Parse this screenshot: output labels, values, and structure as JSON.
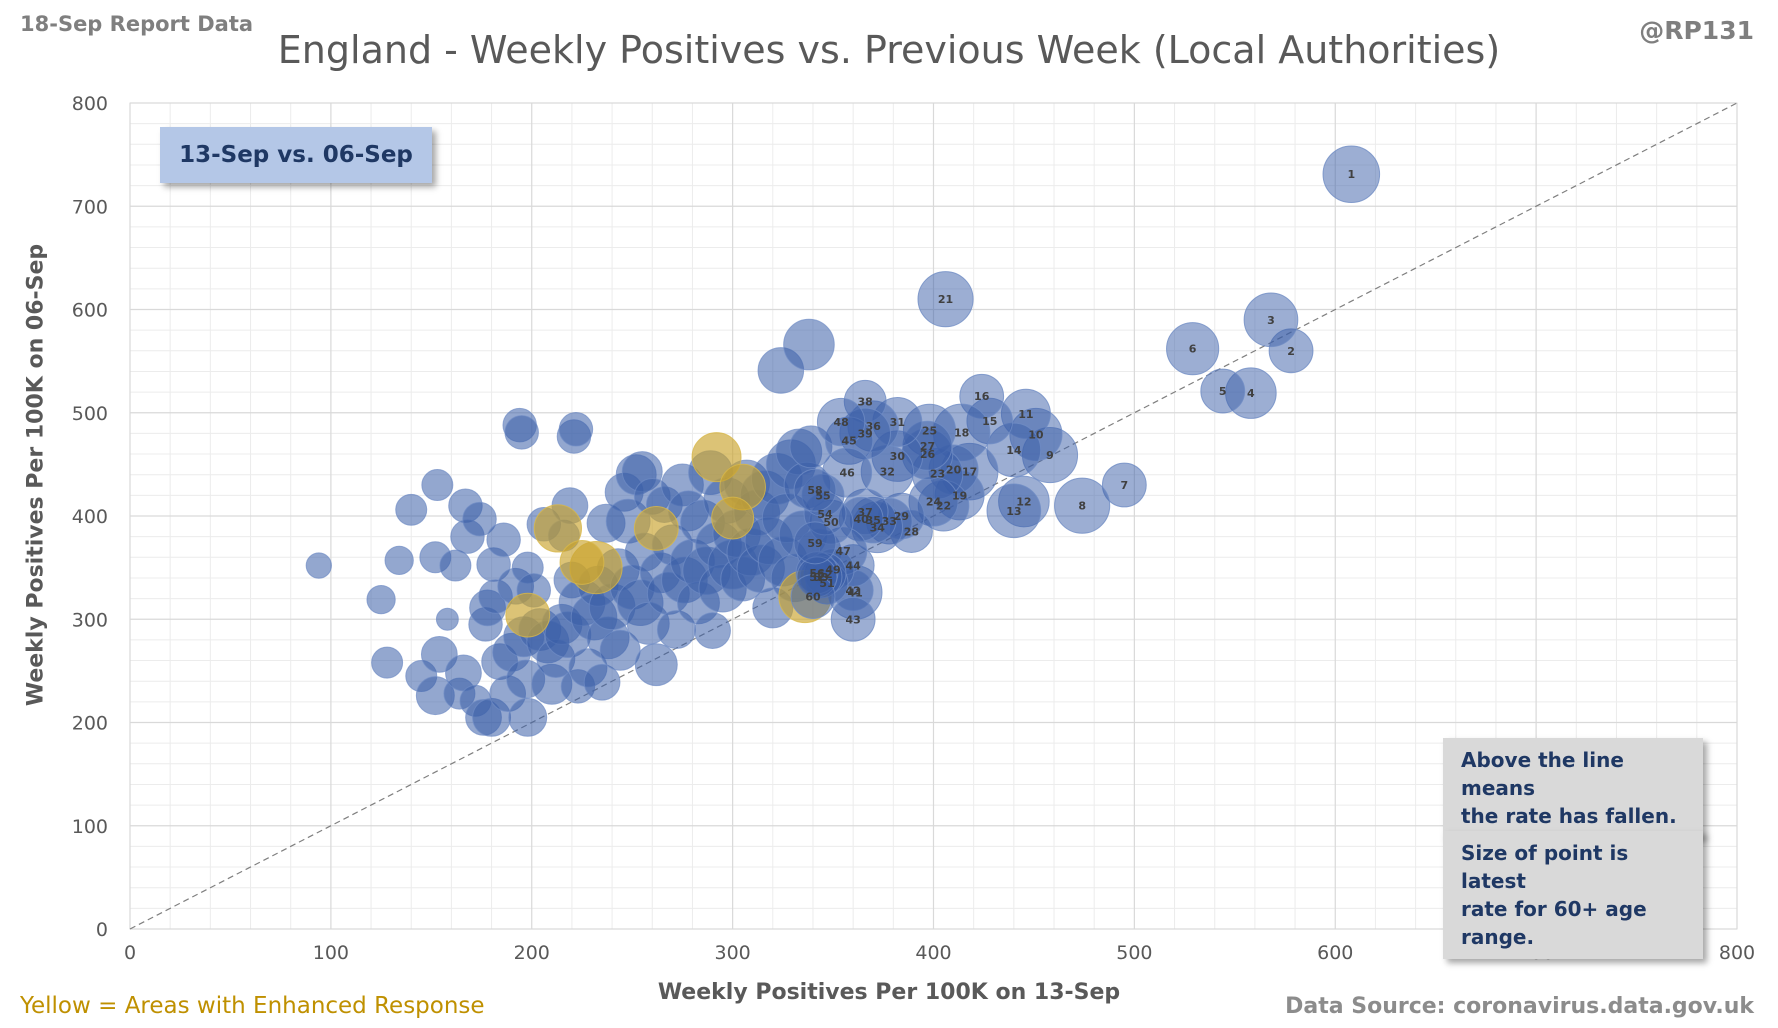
{
  "header": {
    "report_date": "18-Sep Report Data",
    "handle": "@RP131"
  },
  "footer": {
    "enhanced_note": "Yellow = Areas with Enhanced  Response",
    "source": "Data Source: coronavirus.data.gov.uk"
  },
  "annotations": {
    "period": "13-Sep vs. 06-Sep",
    "note_line": "Above the line means\nthe rate has fallen.",
    "note_size": "Size of point is latest\nrate for 60+ age range."
  },
  "colors": {
    "blue": "#3a5ea8",
    "yellow": "#c9a32c",
    "label": "#404040",
    "grid": "#d9d9d9"
  },
  "chart_data": {
    "type": "scatter",
    "title": "England - Weekly Positives vs. Previous Week (Local Authorities)",
    "xlabel": "Weekly Positives Per 100K on 13-Sep",
    "ylabel": "Weekly Positives Per 100K on 06-Sep",
    "xlim": [
      0,
      800
    ],
    "ylim": [
      0,
      800
    ],
    "xticks": [
      0,
      100,
      200,
      300,
      400,
      500,
      600,
      700,
      800
    ],
    "yticks": [
      0,
      100,
      200,
      300,
      400,
      500,
      600,
      700,
      800
    ],
    "grid": true,
    "reference_line": "y = x",
    "point_size_meaning": "latest rate for 60+ age range",
    "labeled_points": [
      {
        "label": "1",
        "x": 608,
        "y": 731,
        "size": 200
      },
      {
        "label": "2",
        "x": 578,
        "y": 560,
        "size": 120
      },
      {
        "label": "3",
        "x": 568,
        "y": 590,
        "size": 180
      },
      {
        "label": "4",
        "x": 558,
        "y": 519,
        "size": 160
      },
      {
        "label": "5",
        "x": 544,
        "y": 521,
        "size": 120
      },
      {
        "label": "6",
        "x": 529,
        "y": 562,
        "size": 170
      },
      {
        "label": "7",
        "x": 495,
        "y": 430,
        "size": 120
      },
      {
        "label": "8",
        "x": 474,
        "y": 410,
        "size": 190
      },
      {
        "label": "9",
        "x": 458,
        "y": 459,
        "size": 190
      },
      {
        "label": "10",
        "x": 451,
        "y": 479,
        "size": 170
      },
      {
        "label": "11",
        "x": 446,
        "y": 499,
        "size": 150
      },
      {
        "label": "12",
        "x": 445,
        "y": 414,
        "size": 160
      },
      {
        "label": "13",
        "x": 440,
        "y": 405,
        "size": 180
      },
      {
        "label": "14",
        "x": 440,
        "y": 464,
        "size": 180
      },
      {
        "label": "15",
        "x": 428,
        "y": 492,
        "size": 130
      },
      {
        "label": "16",
        "x": 424,
        "y": 516,
        "size": 120
      },
      {
        "label": "17",
        "x": 418,
        "y": 443,
        "size": 200
      },
      {
        "label": "18",
        "x": 414,
        "y": 481,
        "size": 200
      },
      {
        "label": "19",
        "x": 413,
        "y": 420,
        "size": 150
      },
      {
        "label": "20",
        "x": 410,
        "y": 445,
        "size": 150
      },
      {
        "label": "21",
        "x": 406,
        "y": 610,
        "size": 190
      },
      {
        "label": "22",
        "x": 405,
        "y": 410,
        "size": 160
      },
      {
        "label": "23",
        "x": 402,
        "y": 441,
        "size": 160
      },
      {
        "label": "24",
        "x": 400,
        "y": 414,
        "size": 150
      },
      {
        "label": "25",
        "x": 398,
        "y": 483,
        "size": 170
      },
      {
        "label": "26",
        "x": 397,
        "y": 460,
        "size": 160
      },
      {
        "label": "27",
        "x": 397,
        "y": 468,
        "size": 150
      },
      {
        "label": "28",
        "x": 389,
        "y": 385,
        "size": 110
      },
      {
        "label": "29",
        "x": 384,
        "y": 400,
        "size": 130
      },
      {
        "label": "30",
        "x": 382,
        "y": 458,
        "size": 160
      },
      {
        "label": "31",
        "x": 382,
        "y": 491,
        "size": 150
      },
      {
        "label": "32",
        "x": 377,
        "y": 443,
        "size": 170
      },
      {
        "label": "33",
        "x": 378,
        "y": 395,
        "size": 130
      },
      {
        "label": "34",
        "x": 372,
        "y": 389,
        "size": 160
      },
      {
        "label": "35",
        "x": 370,
        "y": 396,
        "size": 130
      },
      {
        "label": "36",
        "x": 370,
        "y": 487,
        "size": 160
      },
      {
        "label": "37",
        "x": 366,
        "y": 404,
        "size": 130
      },
      {
        "label": "38",
        "x": 366,
        "y": 511,
        "size": 110
      },
      {
        "label": "39",
        "x": 366,
        "y": 480,
        "size": 160
      },
      {
        "label": "40",
        "x": 364,
        "y": 397,
        "size": 120
      },
      {
        "label": "41",
        "x": 361,
        "y": 326,
        "size": 180
      },
      {
        "label": "42",
        "x": 360,
        "y": 328,
        "size": 100
      },
      {
        "label": "43",
        "x": 360,
        "y": 300,
        "size": 120
      },
      {
        "label": "44",
        "x": 360,
        "y": 352,
        "size": 110
      },
      {
        "label": "45",
        "x": 358,
        "y": 473,
        "size": 140
      },
      {
        "label": "46",
        "x": 357,
        "y": 442,
        "size": 150
      },
      {
        "label": "47",
        "x": 355,
        "y": 366,
        "size": 140
      },
      {
        "label": "48",
        "x": 354,
        "y": 491,
        "size": 140
      },
      {
        "label": "49",
        "x": 350,
        "y": 348,
        "size": 110
      },
      {
        "label": "50",
        "x": 349,
        "y": 394,
        "size": 120
      },
      {
        "label": "51",
        "x": 347,
        "y": 335,
        "size": 110
      },
      {
        "label": "52",
        "x": 346,
        "y": 344,
        "size": 110
      },
      {
        "label": "53",
        "x": 344,
        "y": 341,
        "size": 110
      },
      {
        "label": "54",
        "x": 346,
        "y": 402,
        "size": 110
      },
      {
        "label": "55",
        "x": 345,
        "y": 420,
        "size": 110
      },
      {
        "label": "56",
        "x": 342,
        "y": 345,
        "size": 110
      },
      {
        "label": "57",
        "x": 342,
        "y": 341,
        "size": 100
      },
      {
        "label": "58",
        "x": 341,
        "y": 425,
        "size": 110
      },
      {
        "label": "59",
        "x": 341,
        "y": 374,
        "size": 110
      },
      {
        "label": "60",
        "x": 340,
        "y": 322,
        "size": 120
      }
    ],
    "enhanced_response_points": [
      {
        "x": 292,
        "y": 457,
        "size": 150
      },
      {
        "x": 305,
        "y": 428,
        "size": 130
      },
      {
        "x": 300,
        "y": 398,
        "size": 110
      },
      {
        "x": 262,
        "y": 388,
        "size": 120
      },
      {
        "x": 213,
        "y": 388,
        "size": 140
      },
      {
        "x": 232,
        "y": 350,
        "size": 170
      },
      {
        "x": 225,
        "y": 355,
        "size": 120
      },
      {
        "x": 198,
        "y": 304,
        "size": 120
      },
      {
        "x": 336,
        "y": 322,
        "size": 170
      }
    ],
    "other_points": [
      {
        "x": 94,
        "y": 352,
        "size": 40
      },
      {
        "x": 125,
        "y": 319,
        "size": 50
      },
      {
        "x": 128,
        "y": 258,
        "size": 60
      },
      {
        "x": 134,
        "y": 357,
        "size": 50
      },
      {
        "x": 140,
        "y": 406,
        "size": 60
      },
      {
        "x": 145,
        "y": 245,
        "size": 60
      },
      {
        "x": 152,
        "y": 226,
        "size": 90
      },
      {
        "x": 153,
        "y": 430,
        "size": 60
      },
      {
        "x": 152,
        "y": 360,
        "size": 60
      },
      {
        "x": 154,
        "y": 266,
        "size": 80
      },
      {
        "x": 158,
        "y": 300,
        "size": 30
      },
      {
        "x": 162,
        "y": 352,
        "size": 60
      },
      {
        "x": 164,
        "y": 228,
        "size": 60
      },
      {
        "x": 166,
        "y": 248,
        "size": 80
      },
      {
        "x": 167,
        "y": 410,
        "size": 70
      },
      {
        "x": 168,
        "y": 380,
        "size": 70
      },
      {
        "x": 172,
        "y": 221,
        "size": 60
      },
      {
        "x": 174,
        "y": 397,
        "size": 70
      },
      {
        "x": 176,
        "y": 205,
        "size": 80
      },
      {
        "x": 177,
        "y": 295,
        "size": 70
      },
      {
        "x": 178,
        "y": 311,
        "size": 80
      },
      {
        "x": 180,
        "y": 205,
        "size": 90
      },
      {
        "x": 181,
        "y": 353,
        "size": 70
      },
      {
        "x": 182,
        "y": 322,
        "size": 70
      },
      {
        "x": 184,
        "y": 259,
        "size": 80
      },
      {
        "x": 186,
        "y": 377,
        "size": 70
      },
      {
        "x": 188,
        "y": 228,
        "size": 80
      },
      {
        "x": 190,
        "y": 268,
        "size": 90
      },
      {
        "x": 192,
        "y": 332,
        "size": 80
      },
      {
        "x": 194,
        "y": 488,
        "size": 70
      },
      {
        "x": 195,
        "y": 481,
        "size": 70
      },
      {
        "x": 196,
        "y": 283,
        "size": 100
      },
      {
        "x": 197,
        "y": 242,
        "size": 90
      },
      {
        "x": 198,
        "y": 205,
        "size": 90
      },
      {
        "x": 198,
        "y": 350,
        "size": 60
      },
      {
        "x": 201,
        "y": 328,
        "size": 70
      },
      {
        "x": 204,
        "y": 290,
        "size": 110
      },
      {
        "x": 206,
        "y": 392,
        "size": 70
      },
      {
        "x": 208,
        "y": 278,
        "size": 110
      },
      {
        "x": 210,
        "y": 237,
        "size": 100
      },
      {
        "x": 212,
        "y": 262,
        "size": 90
      },
      {
        "x": 215,
        "y": 295,
        "size": 100
      },
      {
        "x": 216,
        "y": 381,
        "size": 60
      },
      {
        "x": 218,
        "y": 285,
        "size": 130
      },
      {
        "x": 219,
        "y": 410,
        "size": 80
      },
      {
        "x": 220,
        "y": 338,
        "size": 80
      },
      {
        "x": 221,
        "y": 477,
        "size": 70
      },
      {
        "x": 222,
        "y": 484,
        "size": 70
      },
      {
        "x": 223,
        "y": 235,
        "size": 70
      },
      {
        "x": 225,
        "y": 316,
        "size": 130
      },
      {
        "x": 228,
        "y": 253,
        "size": 90
      },
      {
        "x": 231,
        "y": 302,
        "size": 130
      },
      {
        "x": 233,
        "y": 332,
        "size": 100
      },
      {
        "x": 235,
        "y": 239,
        "size": 80
      },
      {
        "x": 237,
        "y": 393,
        "size": 90
      },
      {
        "x": 238,
        "y": 282,
        "size": 110
      },
      {
        "x": 240,
        "y": 312,
        "size": 130
      },
      {
        "x": 243,
        "y": 348,
        "size": 110
      },
      {
        "x": 244,
        "y": 270,
        "size": 100
      },
      {
        "x": 246,
        "y": 423,
        "size": 90
      },
      {
        "x": 248,
        "y": 395,
        "size": 120
      },
      {
        "x": 250,
        "y": 331,
        "size": 120
      },
      {
        "x": 252,
        "y": 440,
        "size": 100
      },
      {
        "x": 254,
        "y": 316,
        "size": 130
      },
      {
        "x": 255,
        "y": 443,
        "size": 100
      },
      {
        "x": 256,
        "y": 365,
        "size": 90
      },
      {
        "x": 258,
        "y": 296,
        "size": 110
      },
      {
        "x": 260,
        "y": 419,
        "size": 80
      },
      {
        "x": 262,
        "y": 256,
        "size": 110
      },
      {
        "x": 264,
        "y": 345,
        "size": 100
      },
      {
        "x": 266,
        "y": 411,
        "size": 80
      },
      {
        "x": 268,
        "y": 325,
        "size": 110
      },
      {
        "x": 270,
        "y": 372,
        "size": 100
      },
      {
        "x": 272,
        "y": 290,
        "size": 90
      },
      {
        "x": 275,
        "y": 430,
        "size": 110
      },
      {
        "x": 276,
        "y": 338,
        "size": 130
      },
      {
        "x": 278,
        "y": 405,
        "size": 100
      },
      {
        "x": 280,
        "y": 356,
        "size": 120
      },
      {
        "x": 283,
        "y": 316,
        "size": 110
      },
      {
        "x": 285,
        "y": 394,
        "size": 120
      },
      {
        "x": 287,
        "y": 347,
        "size": 140
      },
      {
        "x": 289,
        "y": 442,
        "size": 120
      },
      {
        "x": 290,
        "y": 289,
        "size": 80
      },
      {
        "x": 293,
        "y": 372,
        "size": 130
      },
      {
        "x": 295,
        "y": 330,
        "size": 140
      },
      {
        "x": 297,
        "y": 415,
        "size": 130
      },
      {
        "x": 300,
        "y": 353,
        "size": 150
      },
      {
        "x": 302,
        "y": 383,
        "size": 140
      },
      {
        "x": 305,
        "y": 339,
        "size": 120
      },
      {
        "x": 307,
        "y": 432,
        "size": 130
      },
      {
        "x": 309,
        "y": 365,
        "size": 140
      },
      {
        "x": 312,
        "y": 403,
        "size": 130
      },
      {
        "x": 314,
        "y": 349,
        "size": 140
      },
      {
        "x": 316,
        "y": 420,
        "size": 150
      },
      {
        "x": 318,
        "y": 376,
        "size": 140
      },
      {
        "x": 320,
        "y": 311,
        "size": 100
      },
      {
        "x": 322,
        "y": 436,
        "size": 160
      },
      {
        "x": 324,
        "y": 541,
        "size": 130
      },
      {
        "x": 325,
        "y": 356,
        "size": 150
      },
      {
        "x": 327,
        "y": 398,
        "size": 150
      },
      {
        "x": 329,
        "y": 450,
        "size": 150
      },
      {
        "x": 331,
        "y": 340,
        "size": 140
      },
      {
        "x": 333,
        "y": 462,
        "size": 130
      },
      {
        "x": 335,
        "y": 382,
        "size": 140
      },
      {
        "x": 337,
        "y": 430,
        "size": 130
      },
      {
        "x": 338,
        "y": 566,
        "size": 160
      },
      {
        "x": 339,
        "y": 467,
        "size": 110
      },
      {
        "x": 343,
        "y": 366,
        "size": 120
      }
    ]
  }
}
